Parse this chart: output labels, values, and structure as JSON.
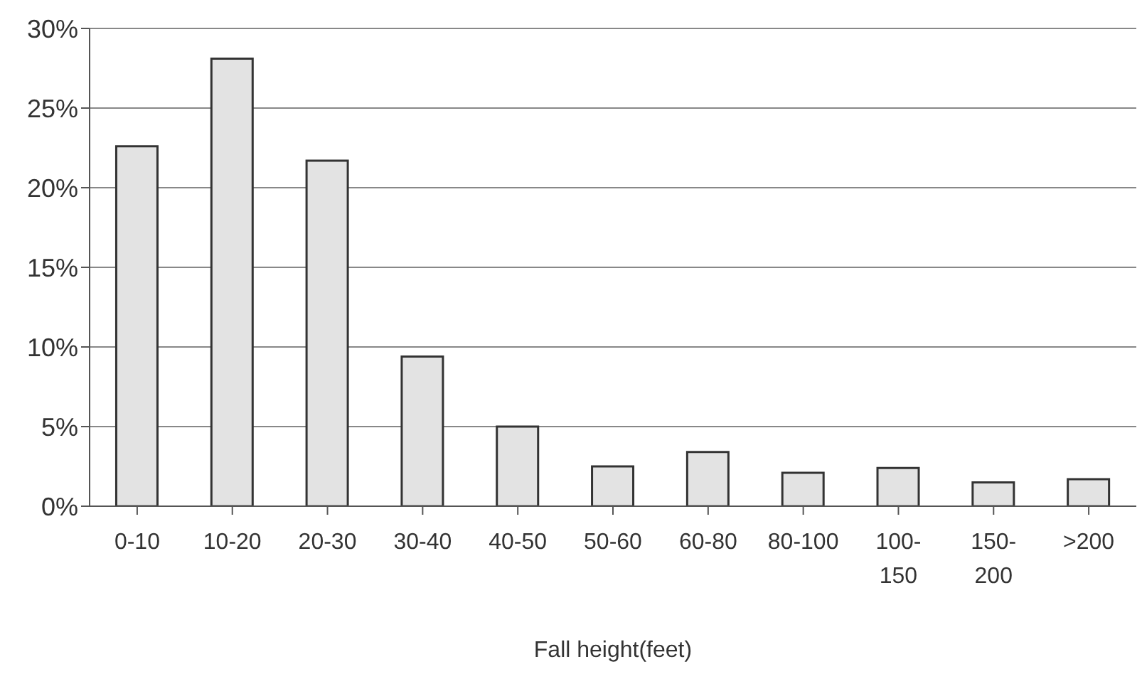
{
  "chart_data": {
    "type": "bar",
    "xlabel": "Fall height(feet)",
    "categories": [
      "0-10",
      "10-20",
      "20-30",
      "30-40",
      "40-50",
      "50-60",
      "60-80",
      "80-100",
      "100-150",
      "150-200",
      ">200"
    ],
    "values": [
      22.6,
      28.1,
      21.7,
      9.4,
      5.0,
      2.5,
      3.4,
      2.1,
      2.4,
      1.5,
      1.7
    ],
    "color": "#e3e3e3",
    "ylim": [
      0,
      30
    ],
    "yticks": [
      {
        "value": 0,
        "label": "0%"
      },
      {
        "value": 5,
        "label": "5%"
      },
      {
        "value": 10,
        "label": "10%"
      },
      {
        "value": 15,
        "label": "15%"
      },
      {
        "value": 20,
        "label": "20%"
      },
      {
        "value": 25,
        "label": "25%"
      },
      {
        "value": 30,
        "label": "30%"
      }
    ],
    "grid": "y",
    "legend": false
  }
}
